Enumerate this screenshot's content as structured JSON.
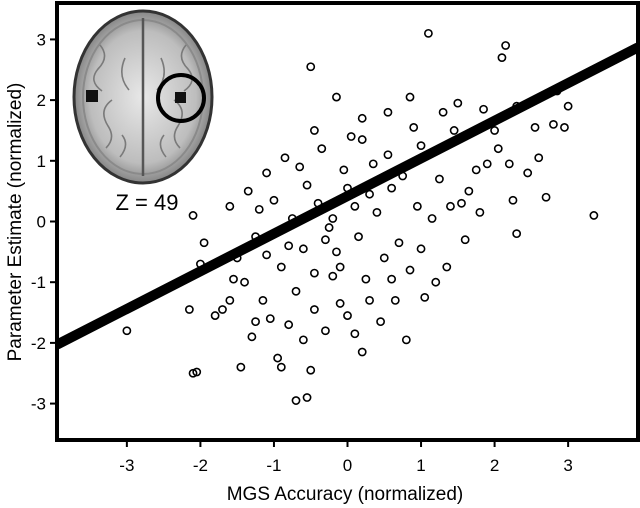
{
  "chart_data": {
    "type": "scatter",
    "xlabel": "MGS Accuracy (normalized)",
    "ylabel": "Parameter Estimate (normalized)",
    "xlim": [
      -3.95,
      3.95
    ],
    "ylim": [
      -3.6,
      3.6
    ],
    "x_ticks": [
      -3,
      -2,
      -1,
      0,
      1,
      2,
      3
    ],
    "x_tick_labels": [
      "-3",
      "-2",
      "-1",
      "0",
      "1",
      "2",
      "3"
    ],
    "y_ticks": [
      -3,
      -2,
      -1,
      0,
      1,
      2,
      3
    ],
    "y_tick_labels": [
      "-3",
      "-2",
      "-1",
      "0",
      "1",
      "2",
      "3"
    ],
    "grid": false,
    "legend": "none",
    "marker": "open-circle",
    "regression_line": {
      "slope": 0.62,
      "intercept": 0.42,
      "color": "#000000"
    },
    "inset": {
      "label": "Z = 49",
      "image": "axial-brain-slice",
      "highlight": "circled-activation-right-hemisphere"
    },
    "points": [
      {
        "x": -3.0,
        "y": -1.8
      },
      {
        "x": -2.1,
        "y": -2.5
      },
      {
        "x": -2.05,
        "y": -2.48
      },
      {
        "x": -2.15,
        "y": -1.45
      },
      {
        "x": -2.0,
        "y": -0.7
      },
      {
        "x": -1.95,
        "y": -0.35
      },
      {
        "x": -2.1,
        "y": 0.1
      },
      {
        "x": -1.7,
        "y": -1.45
      },
      {
        "x": -1.6,
        "y": -1.3
      },
      {
        "x": -1.5,
        "y": -0.6
      },
      {
        "x": -1.45,
        "y": -2.4
      },
      {
        "x": -1.4,
        "y": -1.0
      },
      {
        "x": -1.3,
        "y": -1.9
      },
      {
        "x": -1.2,
        "y": 0.2
      },
      {
        "x": -1.1,
        "y": 0.8
      },
      {
        "x": -1.05,
        "y": -1.6
      },
      {
        "x": -0.95,
        "y": -2.25
      },
      {
        "x": -0.9,
        "y": -2.4
      },
      {
        "x": -0.8,
        "y": -1.7
      },
      {
        "x": -0.7,
        "y": -2.95
      },
      {
        "x": -0.55,
        "y": -2.9
      },
      {
        "x": -0.5,
        "y": -2.45
      },
      {
        "x": -0.45,
        "y": -1.45
      },
      {
        "x": -0.3,
        "y": -1.8
      },
      {
        "x": -0.2,
        "y": -0.9
      },
      {
        "x": -0.1,
        "y": -1.35
      },
      {
        "x": 0.0,
        "y": -1.55
      },
      {
        "x": 0.2,
        "y": -2.15
      },
      {
        "x": 0.3,
        "y": -1.3
      },
      {
        "x": 0.45,
        "y": -1.65
      },
      {
        "x": -0.5,
        "y": 2.55
      },
      {
        "x": -0.15,
        "y": 2.05
      },
      {
        "x": 0.2,
        "y": 1.35
      },
      {
        "x": 0.55,
        "y": 1.8
      },
      {
        "x": 0.85,
        "y": 2.05
      },
      {
        "x": 1.1,
        "y": 3.1
      },
      {
        "x": 1.0,
        "y": 1.25
      },
      {
        "x": 1.25,
        "y": 0.7
      },
      {
        "x": 1.3,
        "y": 1.8
      },
      {
        "x": 1.45,
        "y": 1.5
      },
      {
        "x": 1.55,
        "y": 0.3
      },
      {
        "x": 1.6,
        "y": -0.3
      },
      {
        "x": 1.35,
        "y": -0.75
      },
      {
        "x": 1.2,
        "y": -1.0
      },
      {
        "x": 1.05,
        "y": -1.25
      },
      {
        "x": 0.85,
        "y": -0.8
      },
      {
        "x": 0.8,
        "y": -1.95
      },
      {
        "x": 0.65,
        "y": -1.3
      },
      {
        "x": 1.75,
        "y": 0.85
      },
      {
        "x": 1.85,
        "y": 1.85
      },
      {
        "x": 2.0,
        "y": 1.5
      },
      {
        "x": 2.1,
        "y": 2.7
      },
      {
        "x": 2.15,
        "y": 2.9
      },
      {
        "x": 2.2,
        "y": 0.95
      },
      {
        "x": 2.25,
        "y": 0.35
      },
      {
        "x": 2.3,
        "y": -0.2
      },
      {
        "x": 2.3,
        "y": 1.9
      },
      {
        "x": 2.45,
        "y": 0.8
      },
      {
        "x": 2.55,
        "y": 1.55
      },
      {
        "x": 2.6,
        "y": 1.05
      },
      {
        "x": 2.7,
        "y": 0.4
      },
      {
        "x": 2.85,
        "y": 2.15
      },
      {
        "x": 2.95,
        "y": 1.55
      },
      {
        "x": 3.0,
        "y": 1.9
      },
      {
        "x": 3.35,
        "y": 0.1
      },
      {
        "x": 2.8,
        "y": 1.6
      },
      {
        "x": 1.9,
        "y": 0.95
      },
      {
        "x": 1.5,
        "y": 1.95
      },
      {
        "x": 0.6,
        "y": 0.55
      },
      {
        "x": 0.4,
        "y": 0.15
      },
      {
        "x": 0.1,
        "y": 0.25
      },
      {
        "x": -0.05,
        "y": 0.85
      },
      {
        "x": -0.25,
        "y": -0.1
      },
      {
        "x": -0.4,
        "y": 0.3
      },
      {
        "x": -0.6,
        "y": -0.45
      },
      {
        "x": -0.75,
        "y": 0.05
      },
      {
        "x": -0.9,
        "y": -0.75
      },
      {
        "x": -1.0,
        "y": 0.35
      },
      {
        "x": -1.25,
        "y": -0.25
      },
      {
        "x": -1.35,
        "y": 0.5
      },
      {
        "x": -0.85,
        "y": 1.05
      },
      {
        "x": -0.65,
        "y": 0.9
      },
      {
        "x": -0.35,
        "y": 1.2
      },
      {
        "x": 0.05,
        "y": 1.4
      },
      {
        "x": 0.35,
        "y": 0.95
      },
      {
        "x": 0.75,
        "y": 0.75
      },
      {
        "x": 0.95,
        "y": 0.25
      },
      {
        "x": 0.7,
        "y": -0.35
      },
      {
        "x": 0.5,
        "y": -0.6
      },
      {
        "x": 0.25,
        "y": -0.95
      },
      {
        "x": -0.15,
        "y": -0.5
      },
      {
        "x": -0.45,
        "y": -0.85
      },
      {
        "x": -0.7,
        "y": -1.15
      },
      {
        "x": -1.15,
        "y": -1.3
      },
      {
        "x": -1.55,
        "y": -0.95
      },
      {
        "x": 0.9,
        "y": 1.55
      },
      {
        "x": 1.15,
        "y": 0.05
      },
      {
        "x": 0.0,
        "y": 0.55
      },
      {
        "x": -0.2,
        "y": 0.05
      },
      {
        "x": -0.55,
        "y": 0.6
      },
      {
        "x": -0.3,
        "y": -0.3
      },
      {
        "x": 0.15,
        "y": -0.25
      },
      {
        "x": 0.3,
        "y": 0.45
      },
      {
        "x": -0.1,
        "y": -0.75
      },
      {
        "x": -0.8,
        "y": -0.4
      },
      {
        "x": -1.1,
        "y": -0.55
      },
      {
        "x": 1.4,
        "y": 0.25
      },
      {
        "x": 1.65,
        "y": 0.5
      },
      {
        "x": 0.55,
        "y": 1.1
      },
      {
        "x": 0.2,
        "y": 1.7
      },
      {
        "x": -0.45,
        "y": 1.5
      },
      {
        "x": -1.6,
        "y": 0.25
      },
      {
        "x": -1.8,
        "y": -1.55
      },
      {
        "x": -1.25,
        "y": -1.65
      },
      {
        "x": -0.6,
        "y": -1.95
      },
      {
        "x": 0.1,
        "y": -1.85
      },
      {
        "x": 0.6,
        "y": -0.95
      },
      {
        "x": 1.0,
        "y": -0.45
      },
      {
        "x": 1.8,
        "y": 0.15
      },
      {
        "x": 2.05,
        "y": 1.2
      }
    ]
  },
  "inset_text": {
    "z_label": "Z = 49"
  }
}
